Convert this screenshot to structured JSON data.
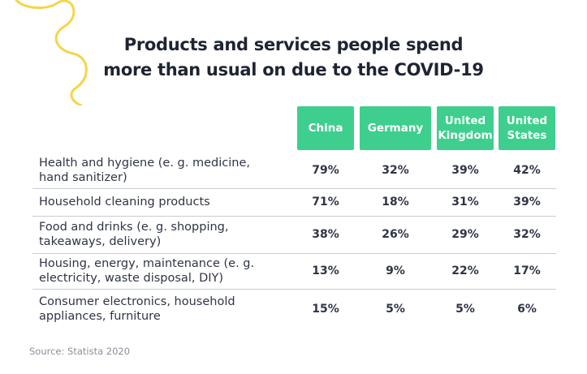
{
  "title_line1": "Products and services people spend",
  "title_line2": "more than usual on due to the COVID-19",
  "source": "Source: Statista 2020",
  "colors": {
    "header_bg": "#3ecf8e",
    "accent_squiggle": "#f5d547",
    "text": "#2f3545"
  },
  "chart_data": {
    "type": "table",
    "columns": [
      "China",
      "Germany",
      "United Kingdom",
      "United States"
    ],
    "column_display": [
      [
        "China"
      ],
      [
        "Germany"
      ],
      [
        "United",
        "Kingdom"
      ],
      [
        "United",
        "States"
      ]
    ],
    "rows": [
      {
        "label_lines": [
          "Health and hygiene (e. g. medicine,",
          "hand sanitizer)"
        ],
        "values": [
          "79%",
          "32%",
          "39%",
          "42%"
        ]
      },
      {
        "label_lines": [
          "Household cleaning products"
        ],
        "values": [
          "71%",
          "18%",
          "31%",
          "39%"
        ]
      },
      {
        "label_lines": [
          "Food and drinks (e. g. shopping,",
          "takeaways, delivery)"
        ],
        "values": [
          "38%",
          "26%",
          "29%",
          "32%"
        ]
      },
      {
        "label_lines": [
          "Housing, energy, maintenance (e. g.",
          "electricity, waste disposal, DIY)"
        ],
        "values": [
          "13%",
          "9%",
          "22%",
          "17%"
        ]
      },
      {
        "label_lines": [
          "Consumer electronics, household",
          "appliances, furniture"
        ],
        "values": [
          "15%",
          "5%",
          "5%",
          "6%"
        ]
      }
    ]
  }
}
